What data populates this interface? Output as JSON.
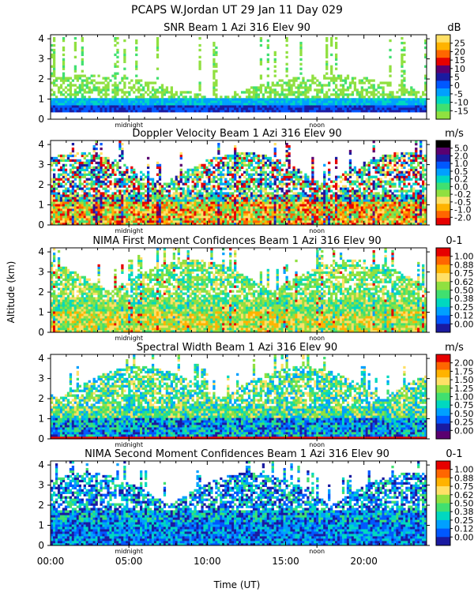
{
  "header": {
    "title": "PCAPS W.Jordan UT  29 Jan 11 Day 029"
  },
  "axes": {
    "ylabel": "Altitude (km)",
    "xlabel": "Time (UT)",
    "y_ticks": [
      "0",
      "1",
      "2",
      "3",
      "4"
    ],
    "x_ticks": [
      "00:00",
      "05:00",
      "10:00",
      "15:00",
      "20:00"
    ],
    "markers": [
      "midnight",
      "noon"
    ]
  },
  "chart_data": [
    {
      "type": "heatmap",
      "title": "SNR Beam 1 Azi 316 Elev 90",
      "unit": "dB",
      "xlim": [
        0,
        24
      ],
      "ylim": [
        0,
        4.2
      ],
      "colorbar_labels": [
        "25",
        "20",
        "15",
        "10",
        "5",
        "0",
        "-5",
        "-10",
        "-15"
      ],
      "colorbar_colors": [
        "#ffe066",
        "#ffb300",
        "#ff6600",
        "#e60000",
        "#5a0070",
        "#1a1aa0",
        "#0058ff",
        "#00a0ff",
        "#00d8c0",
        "#40e070",
        "#90e040"
      ],
      "pattern": "snr"
    },
    {
      "type": "heatmap",
      "title": "Doppler Velocity Beam 1 Azi 316 Elev 90",
      "unit": "m/s",
      "xlim": [
        0,
        24
      ],
      "ylim": [
        0,
        4.2
      ],
      "colorbar_labels": [
        "5.0",
        "2.0",
        "1.0",
        "0.5",
        "0.2",
        "0.0",
        "-0.2",
        "-0.5",
        "-1.0",
        "-2.0"
      ],
      "colorbar_colors": [
        "#000000",
        "#5a0070",
        "#1a1aa0",
        "#0058ff",
        "#00a0ff",
        "#00d8c0",
        "#40e070",
        "#90e040",
        "#ffe066",
        "#ffb300",
        "#ff6600",
        "#e60000"
      ],
      "pattern": "doppler"
    },
    {
      "type": "heatmap",
      "title": "NIMA First Moment Confidences Beam 1 Azi 316 Elev 90",
      "unit": "0-1",
      "xlim": [
        0,
        24
      ],
      "ylim": [
        0,
        4.2
      ],
      "colorbar_labels": [
        "1.00",
        "0.88",
        "0.75",
        "0.62",
        "0.50",
        "0.38",
        "0.25",
        "0.12",
        "0.00"
      ],
      "colorbar_colors": [
        "#e60000",
        "#ff6600",
        "#ffb300",
        "#ffe066",
        "#90e040",
        "#40e070",
        "#00d8c0",
        "#00a0ff",
        "#0058ff",
        "#1a1aa0"
      ],
      "pattern": "conf1"
    },
    {
      "type": "heatmap",
      "title": "Spectral Width Beam 1 Azi 316 Elev 90",
      "unit": "m/s",
      "xlim": [
        0,
        24
      ],
      "ylim": [
        0,
        4.2
      ],
      "colorbar_labels": [
        "2.00",
        "1.75",
        "1.50",
        "1.25",
        "1.00",
        "0.75",
        "0.50",
        "0.25",
        "0.00"
      ],
      "colorbar_colors": [
        "#e60000",
        "#ff6600",
        "#ffb300",
        "#ffe066",
        "#90e040",
        "#40e070",
        "#00d8c0",
        "#00a0ff",
        "#0058ff",
        "#1a1aa0",
        "#5a0070"
      ],
      "pattern": "width"
    },
    {
      "type": "heatmap",
      "title": "NIMA Second Moment Confidences Beam 1 Azi 316 Elev 90",
      "unit": "0-1",
      "xlim": [
        0,
        24
      ],
      "ylim": [
        0,
        4.2
      ],
      "colorbar_labels": [
        "1.00",
        "0.88",
        "0.75",
        "0.62",
        "0.50",
        "0.38",
        "0.25",
        "0.12",
        "0.00"
      ],
      "colorbar_colors": [
        "#e60000",
        "#ff6600",
        "#ffb300",
        "#ffe066",
        "#90e040",
        "#40e070",
        "#00d8c0",
        "#00a0ff",
        "#0058ff",
        "#1a1aa0"
      ],
      "pattern": "conf2"
    }
  ]
}
